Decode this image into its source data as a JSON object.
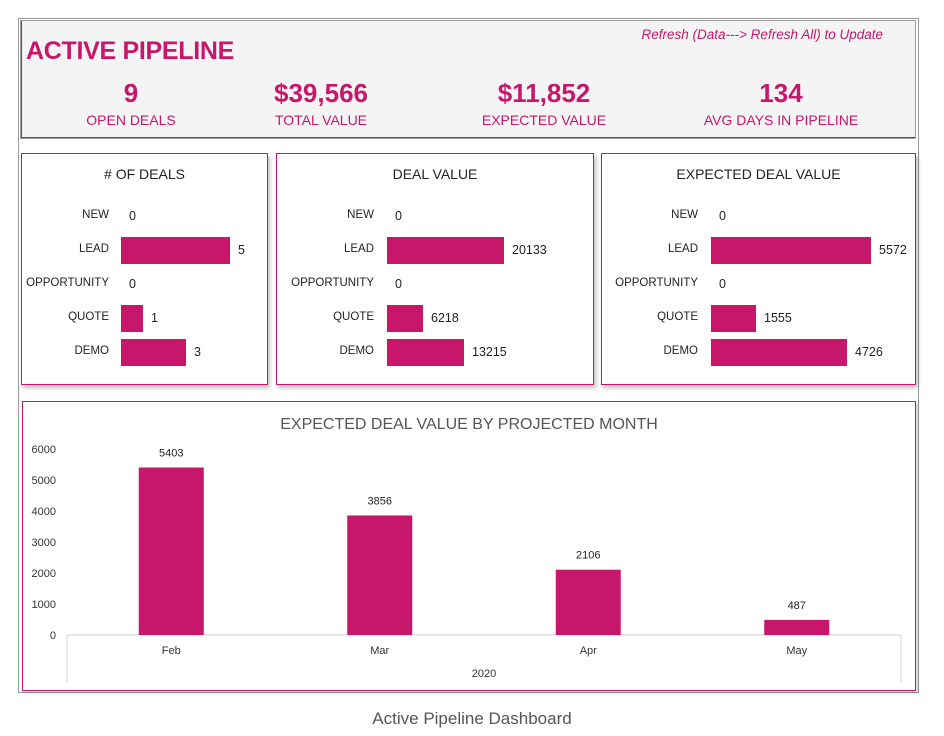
{
  "header": {
    "title": "ACTIVE PIPELINE",
    "refresh_note": "Refresh (Data---> Refresh All) to Update",
    "kpis": [
      {
        "value": "9",
        "label": "OPEN DEALS"
      },
      {
        "value": "$39,566",
        "label": "TOTAL VALUE"
      },
      {
        "value": "$11,852",
        "label": "EXPECTED VALUE"
      },
      {
        "value": "134",
        "label": "AVG DAYS IN PIPELINE"
      }
    ]
  },
  "caption": "Active Pipeline Dashboard",
  "colors": {
    "accent": "#c8166b"
  },
  "chart_data": [
    {
      "type": "bar",
      "orientation": "horizontal",
      "title": "# OF DEALS",
      "categories": [
        "NEW",
        "LEAD",
        "OPPORTUNITY",
        "QUOTE",
        "DEMO"
      ],
      "values": [
        0,
        5,
        0,
        1,
        3
      ],
      "value_labels": [
        "0",
        "5",
        "0",
        "1",
        "3"
      ]
    },
    {
      "type": "bar",
      "orientation": "horizontal",
      "title": "DEAL VALUE",
      "categories": [
        "NEW",
        "LEAD",
        "OPPORTUNITY",
        "QUOTE",
        "DEMO"
      ],
      "values": [
        0,
        20133,
        0,
        6218,
        13215
      ],
      "value_labels": [
        "0",
        "20133",
        "0",
        "6218",
        "13215"
      ]
    },
    {
      "type": "bar",
      "orientation": "horizontal",
      "title": "EXPECTED DEAL VALUE",
      "categories": [
        "NEW",
        "LEAD",
        "OPPORTUNITY",
        "QUOTE",
        "DEMO"
      ],
      "values": [
        0,
        5572,
        0,
        1555,
        4726
      ],
      "value_labels": [
        "0",
        "5572",
        "0",
        "1555",
        "4726"
      ]
    },
    {
      "type": "bar",
      "orientation": "vertical",
      "title": "EXPECTED DEAL VALUE BY PROJECTED MONTH",
      "categories": [
        "Feb",
        "Mar",
        "Apr",
        "May"
      ],
      "group_label": "2020",
      "values": [
        5403,
        3856,
        2106,
        487
      ],
      "value_labels": [
        "5403",
        "3856",
        "2106",
        "487"
      ],
      "ylim": [
        0,
        6000
      ],
      "yticks": [
        "0",
        "1000",
        "2000",
        "3000",
        "4000",
        "5000",
        "6000"
      ],
      "grid": false,
      "legend": "none"
    }
  ]
}
